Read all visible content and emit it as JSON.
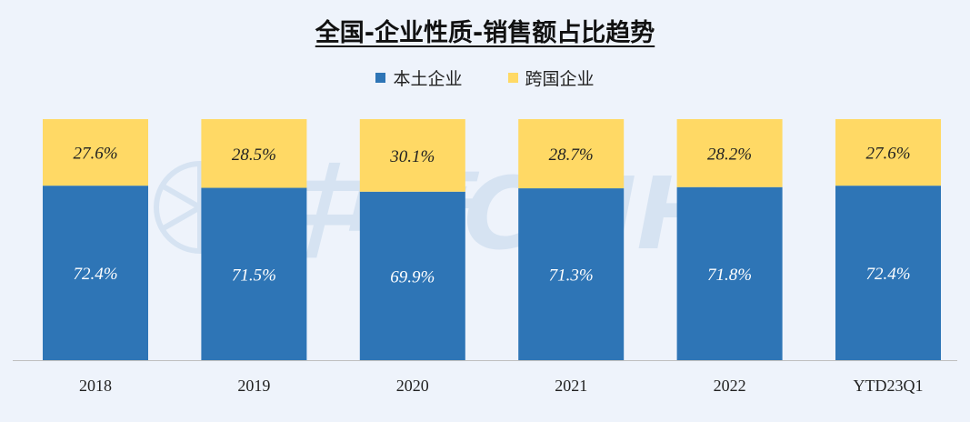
{
  "chart_data": {
    "type": "bar",
    "stacked": true,
    "title": "全国-企业性质-销售额占比趋势",
    "categories": [
      "2018",
      "2019",
      "2020",
      "2021",
      "2022",
      "YTD23Q1"
    ],
    "series": [
      {
        "name": "本土企业",
        "values": [
          72.4,
          71.5,
          69.9,
          71.3,
          71.8,
          72.4
        ],
        "labels": [
          "72.4%",
          "71.5%",
          "69.9%",
          "71.3%",
          "71.8%",
          "72.4%"
        ],
        "color": "#2e75b6"
      },
      {
        "name": "跨国企业",
        "values": [
          27.6,
          28.5,
          30.1,
          28.7,
          28.2,
          27.6
        ],
        "labels": [
          "27.6%",
          "28.5%",
          "30.1%",
          "28.7%",
          "28.2%",
          "27.6%"
        ],
        "color": "#ffd965"
      }
    ],
    "ylim": [
      0,
      100
    ],
    "unit": "%",
    "legend_position": "top",
    "grid": false
  },
  "watermark": {
    "text": "中康CMH",
    "color": "#2e75b6"
  }
}
